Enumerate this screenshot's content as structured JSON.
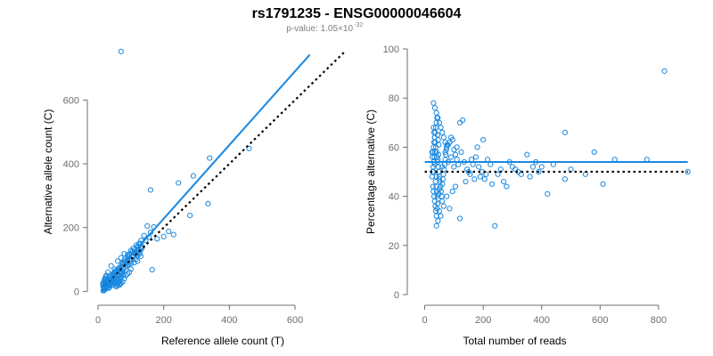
{
  "title": "rs1791235 - ENSG00000046604",
  "subtitle": {
    "prefix": "p-value: 1.05×10",
    "exponent": "-32"
  },
  "colors": {
    "points": "#1a88e0",
    "fit": "#1a88e0",
    "reference": "#000000",
    "axis": "#6e6e6e",
    "subtitle": "#808080"
  },
  "chart_data": [
    {
      "type": "scatter",
      "name": "left-panel",
      "xlabel": "Reference allele count (T)",
      "ylabel": "Alternative allele count (C)",
      "xlim": [
        0,
        760
      ],
      "ylim": [
        -10,
        760
      ],
      "xticks": [
        "0",
        "200",
        "400",
        "600"
      ],
      "yticks": [
        "0",
        "200",
        "400",
        "600"
      ],
      "grid": false,
      "fit_line": {
        "x": [
          20,
          645
        ],
        "y": [
          20,
          742
        ]
      },
      "reference_line": {
        "x": [
          20,
          750
        ],
        "y": [
          20,
          750
        ]
      },
      "points": [
        [
          70,
          752
        ],
        [
          340,
          418
        ],
        [
          290,
          362
        ],
        [
          160,
          318
        ],
        [
          245,
          340
        ],
        [
          460,
          448
        ],
        [
          335,
          275
        ],
        [
          230,
          178
        ],
        [
          200,
          172
        ],
        [
          165,
          68
        ],
        [
          215,
          188
        ],
        [
          280,
          238
        ],
        [
          150,
          205
        ],
        [
          170,
          202
        ],
        [
          160,
          185
        ],
        [
          180,
          165
        ],
        [
          140,
          175
        ],
        [
          130,
          150
        ],
        [
          120,
          140
        ],
        [
          110,
          120
        ],
        [
          100,
          128
        ],
        [
          90,
          115
        ],
        [
          80,
          118
        ],
        [
          70,
          105
        ],
        [
          60,
          95
        ],
        [
          50,
          70
        ],
        [
          40,
          80
        ],
        [
          30,
          60
        ],
        [
          25,
          40
        ],
        [
          20,
          30
        ],
        [
          15,
          25
        ],
        [
          18,
          10
        ],
        [
          22,
          18
        ],
        [
          28,
          35
        ],
        [
          35,
          45
        ],
        [
          45,
          55
        ],
        [
          55,
          65
        ],
        [
          65,
          75
        ],
        [
          75,
          85
        ],
        [
          85,
          95
        ],
        [
          95,
          100
        ],
        [
          105,
          110
        ],
        [
          115,
          115
        ],
        [
          125,
          130
        ],
        [
          135,
          140
        ],
        [
          145,
          160
        ],
        [
          155,
          170
        ],
        [
          110,
          90
        ],
        [
          90,
          80
        ],
        [
          70,
          60
        ],
        [
          60,
          50
        ],
        [
          50,
          40
        ],
        [
          40,
          30
        ],
        [
          30,
          20
        ],
        [
          26,
          15
        ],
        [
          24,
          12
        ],
        [
          22,
          8
        ],
        [
          20,
          5
        ],
        [
          18,
          3
        ],
        [
          16,
          2
        ],
        [
          15,
          20
        ],
        [
          17,
          25
        ],
        [
          19,
          35
        ],
        [
          21,
          40
        ],
        [
          23,
          45
        ],
        [
          25,
          50
        ],
        [
          27,
          30
        ],
        [
          29,
          28
        ],
        [
          31,
          25
        ],
        [
          33,
          38
        ],
        [
          35,
          42
        ],
        [
          37,
          18
        ],
        [
          39,
          22
        ],
        [
          41,
          26
        ],
        [
          43,
          33
        ],
        [
          45,
          48
        ],
        [
          47,
          52
        ],
        [
          49,
          58
        ],
        [
          51,
          62
        ],
        [
          53,
          45
        ],
        [
          55,
          38
        ],
        [
          57,
          42
        ],
        [
          59,
          55
        ],
        [
          61,
          68
        ],
        [
          63,
          72
        ],
        [
          65,
          48
        ],
        [
          67,
          58
        ],
        [
          69,
          62
        ],
        [
          71,
          78
        ],
        [
          73,
          88
        ],
        [
          75,
          65
        ],
        [
          77,
          70
        ],
        [
          79,
          92
        ],
        [
          81,
          100
        ],
        [
          83,
          75
        ],
        [
          85,
          82
        ],
        [
          87,
          90
        ],
        [
          89,
          98
        ],
        [
          91,
          105
        ],
        [
          93,
          85
        ],
        [
          95,
          110
        ],
        [
          97,
          118
        ],
        [
          99,
          95
        ],
        [
          101,
          88
        ],
        [
          103,
          100
        ],
        [
          105,
          125
        ],
        [
          107,
          135
        ],
        [
          109,
          110
        ],
        [
          111,
          130
        ],
        [
          113,
          120
        ],
        [
          115,
          100
        ],
        [
          117,
          145
        ],
        [
          119,
          125
        ],
        [
          121,
          112
        ],
        [
          123,
          140
        ],
        [
          125,
          150
        ],
        [
          127,
          118
        ],
        [
          129,
          128
        ],
        [
          131,
          160
        ],
        [
          133,
          135
        ],
        [
          18,
          12
        ],
        [
          20,
          15
        ],
        [
          22,
          22
        ],
        [
          24,
          28
        ],
        [
          26,
          32
        ],
        [
          28,
          20
        ],
        [
          30,
          15
        ],
        [
          32,
          10
        ],
        [
          34,
          12
        ],
        [
          36,
          18
        ],
        [
          38,
          25
        ],
        [
          40,
          35
        ],
        [
          42,
          40
        ],
        [
          44,
          30
        ],
        [
          46,
          20
        ],
        [
          48,
          28
        ],
        [
          50,
          35
        ],
        [
          52,
          30
        ],
        [
          54,
          25
        ],
        [
          56,
          20
        ],
        [
          58,
          28
        ],
        [
          60,
          35
        ],
        [
          62,
          40
        ],
        [
          64,
          30
        ],
        [
          66,
          25
        ],
        [
          68,
          40
        ],
        [
          70,
          45
        ],
        [
          72,
          55
        ],
        [
          74,
          60
        ],
        [
          76,
          50
        ],
        [
          16,
          14
        ],
        [
          18,
          16
        ],
        [
          20,
          18
        ],
        [
          22,
          20
        ],
        [
          24,
          22
        ],
        [
          26,
          24
        ],
        [
          28,
          26
        ],
        [
          30,
          28
        ],
        [
          32,
          30
        ],
        [
          34,
          32
        ],
        [
          36,
          34
        ],
        [
          38,
          36
        ],
        [
          19,
          9
        ],
        [
          21,
          11
        ],
        [
          23,
          13
        ],
        [
          25,
          17
        ],
        [
          27,
          19
        ],
        [
          29,
          21
        ],
        [
          31,
          23
        ],
        [
          33,
          27
        ],
        [
          35,
          29
        ],
        [
          37,
          31
        ],
        [
          39,
          33
        ],
        [
          41,
          37
        ],
        [
          80,
          40
        ],
        [
          75,
          30
        ],
        [
          70,
          25
        ],
        [
          65,
          20
        ],
        [
          60,
          18
        ],
        [
          55,
          15
        ],
        [
          100,
          70
        ],
        [
          95,
          60
        ],
        [
          90,
          55
        ],
        [
          85,
          50
        ],
        [
          120,
          95
        ],
        [
          130,
          110
        ]
      ]
    },
    {
      "type": "scatter",
      "name": "right-panel",
      "xlabel": "Total number of reads",
      "ylabel": "Percentage alternative (C)",
      "xlim": [
        -20,
        910
      ],
      "ylim": [
        0,
        100
      ],
      "xticks": [
        "0",
        "200",
        "400",
        "600",
        "800"
      ],
      "yticks": [
        "0",
        "20",
        "40",
        "60",
        "80",
        "100"
      ],
      "grid": false,
      "fit_line": {
        "x": [
          0,
          900
        ],
        "y": [
          54,
          54
        ]
      },
      "reference_line": {
        "x": [
          0,
          900
        ],
        "y": [
          50,
          50
        ]
      },
      "points": [
        [
          820,
          91
        ],
        [
          480,
          66
        ],
        [
          580,
          58
        ],
        [
          650,
          55
        ],
        [
          760,
          55
        ],
        [
          900,
          50
        ],
        [
          610,
          45
        ],
        [
          420,
          41
        ],
        [
          480,
          47
        ],
        [
          380,
          54
        ],
        [
          350,
          57
        ],
        [
          300,
          52
        ],
        [
          260,
          51
        ],
        [
          200,
          63
        ],
        [
          180,
          60
        ],
        [
          160,
          55
        ],
        [
          150,
          50
        ],
        [
          130,
          71
        ],
        [
          120,
          70
        ],
        [
          110,
          60
        ],
        [
          100,
          52
        ],
        [
          90,
          56
        ],
        [
          80,
          54
        ],
        [
          70,
          58
        ],
        [
          60,
          52
        ],
        [
          50,
          47
        ],
        [
          40,
          48
        ],
        [
          35,
          53
        ],
        [
          30,
          50
        ],
        [
          25,
          58
        ],
        [
          240,
          28
        ],
        [
          120,
          31
        ],
        [
          85,
          35
        ],
        [
          60,
          38
        ],
        [
          50,
          34
        ],
        [
          40,
          28
        ],
        [
          45,
          30
        ],
        [
          55,
          32
        ],
        [
          65,
          36
        ],
        [
          75,
          40
        ],
        [
          95,
          42
        ],
        [
          105,
          44
        ],
        [
          140,
          46
        ],
        [
          170,
          47
        ],
        [
          190,
          48
        ],
        [
          210,
          49
        ],
        [
          230,
          45
        ],
        [
          280,
          44
        ],
        [
          320,
          50
        ],
        [
          360,
          48
        ],
        [
          400,
          52
        ],
        [
          440,
          53
        ],
        [
          500,
          51
        ],
        [
          550,
          49
        ],
        [
          30,
          78
        ],
        [
          35,
          76
        ],
        [
          40,
          74
        ],
        [
          45,
          72
        ],
        [
          50,
          70
        ],
        [
          55,
          68
        ],
        [
          60,
          66
        ],
        [
          65,
          64
        ],
        [
          70,
          62
        ],
        [
          75,
          60
        ],
        [
          80,
          61
        ],
        [
          85,
          62
        ],
        [
          90,
          64
        ],
        [
          95,
          63
        ],
        [
          100,
          59
        ],
        [
          105,
          57
        ],
        [
          110,
          55
        ],
        [
          115,
          53
        ],
        [
          30,
          68
        ],
        [
          32,
          66
        ],
        [
          34,
          64
        ],
        [
          36,
          62
        ],
        [
          38,
          60
        ],
        [
          40,
          58
        ],
        [
          42,
          56
        ],
        [
          44,
          54
        ],
        [
          46,
          52
        ],
        [
          48,
          50
        ],
        [
          50,
          48
        ],
        [
          52,
          46
        ],
        [
          54,
          44
        ],
        [
          56,
          42
        ],
        [
          58,
          40
        ],
        [
          60,
          45
        ],
        [
          62,
          47
        ],
        [
          64,
          49
        ],
        [
          66,
          51
        ],
        [
          68,
          53
        ],
        [
          70,
          55
        ],
        [
          72,
          57
        ],
        [
          74,
          59
        ],
        [
          76,
          61
        ],
        [
          28,
          44
        ],
        [
          30,
          42
        ],
        [
          32,
          40
        ],
        [
          34,
          38
        ],
        [
          36,
          36
        ],
        [
          38,
          34
        ],
        [
          40,
          32
        ],
        [
          42,
          35
        ],
        [
          44,
          37
        ],
        [
          46,
          39
        ],
        [
          48,
          41
        ],
        [
          50,
          43
        ],
        [
          26,
          56
        ],
        [
          28,
          58
        ],
        [
          30,
          60
        ],
        [
          32,
          62
        ],
        [
          34,
          64
        ],
        [
          36,
          66
        ],
        [
          38,
          68
        ],
        [
          40,
          70
        ],
        [
          42,
          72
        ],
        [
          44,
          65
        ],
        [
          46,
          63
        ],
        [
          48,
          61
        ],
        [
          25,
          48
        ],
        [
          27,
          50
        ],
        [
          29,
          52
        ],
        [
          31,
          54
        ],
        [
          33,
          56
        ],
        [
          35,
          58
        ],
        [
          37,
          46
        ],
        [
          39,
          44
        ],
        [
          41,
          42
        ],
        [
          43,
          40
        ],
        [
          45,
          55
        ],
        [
          47,
          57
        ],
        [
          125,
          58
        ],
        [
          135,
          54
        ],
        [
          145,
          51
        ],
        [
          155,
          49
        ],
        [
          165,
          53
        ],
        [
          175,
          56
        ],
        [
          185,
          52
        ],
        [
          195,
          50
        ],
        [
          205,
          47
        ],
        [
          215,
          55
        ],
        [
          225,
          53
        ],
        [
          250,
          49
        ],
        [
          270,
          46
        ],
        [
          290,
          54
        ],
        [
          310,
          51
        ],
        [
          330,
          49
        ],
        [
          370,
          52
        ],
        [
          390,
          50
        ]
      ]
    }
  ]
}
